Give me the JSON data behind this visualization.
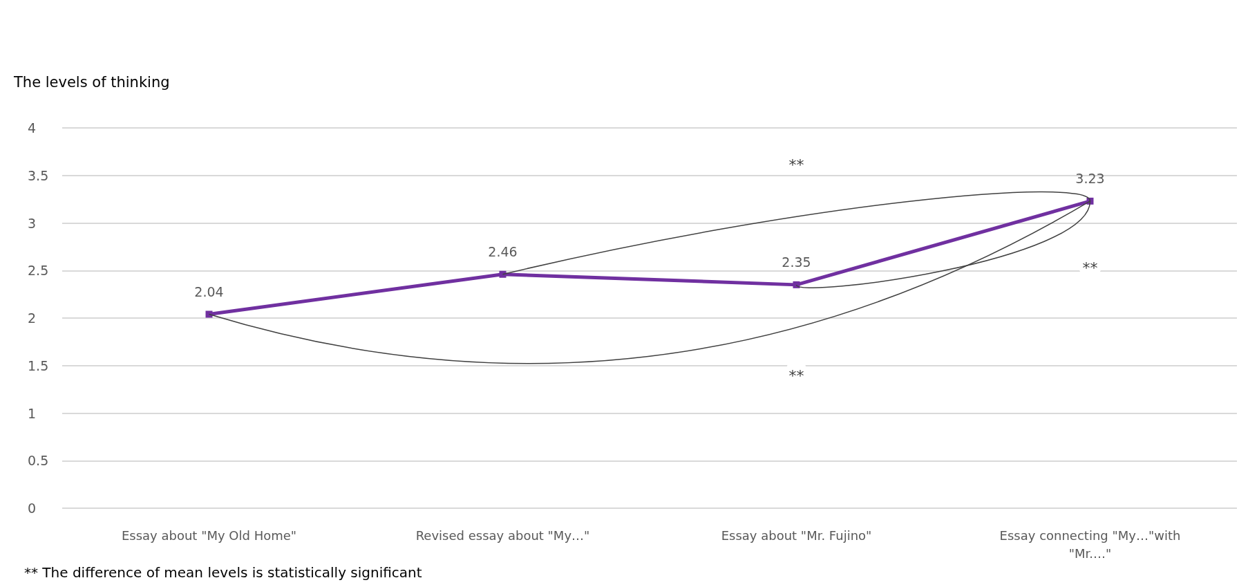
{
  "chart_data": {
    "type": "line",
    "ylabel": "The levels of thinking",
    "categories": [
      "Essay about \"My Old Home\"",
      "Revised essay about \"My…\"",
      "Essay about \"Mr. Fujino\"",
      "Essay connecting \"My…\"with\n\"Mr.…\""
    ],
    "series": [
      {
        "color": "#7030a0",
        "values": [
          2.04,
          2.46,
          2.35,
          3.23
        ]
      }
    ],
    "ylim": [
      0,
      4
    ],
    "yticks": [
      0,
      0.5,
      1,
      1.5,
      2,
      2.5,
      3,
      3.5,
      4
    ],
    "grid": "y",
    "marker": "square",
    "line_style": "solid",
    "data_labels": true,
    "annotations": [
      "**",
      "**",
      "**",
      "** The difference of mean levels is statistically significant"
    ]
  }
}
